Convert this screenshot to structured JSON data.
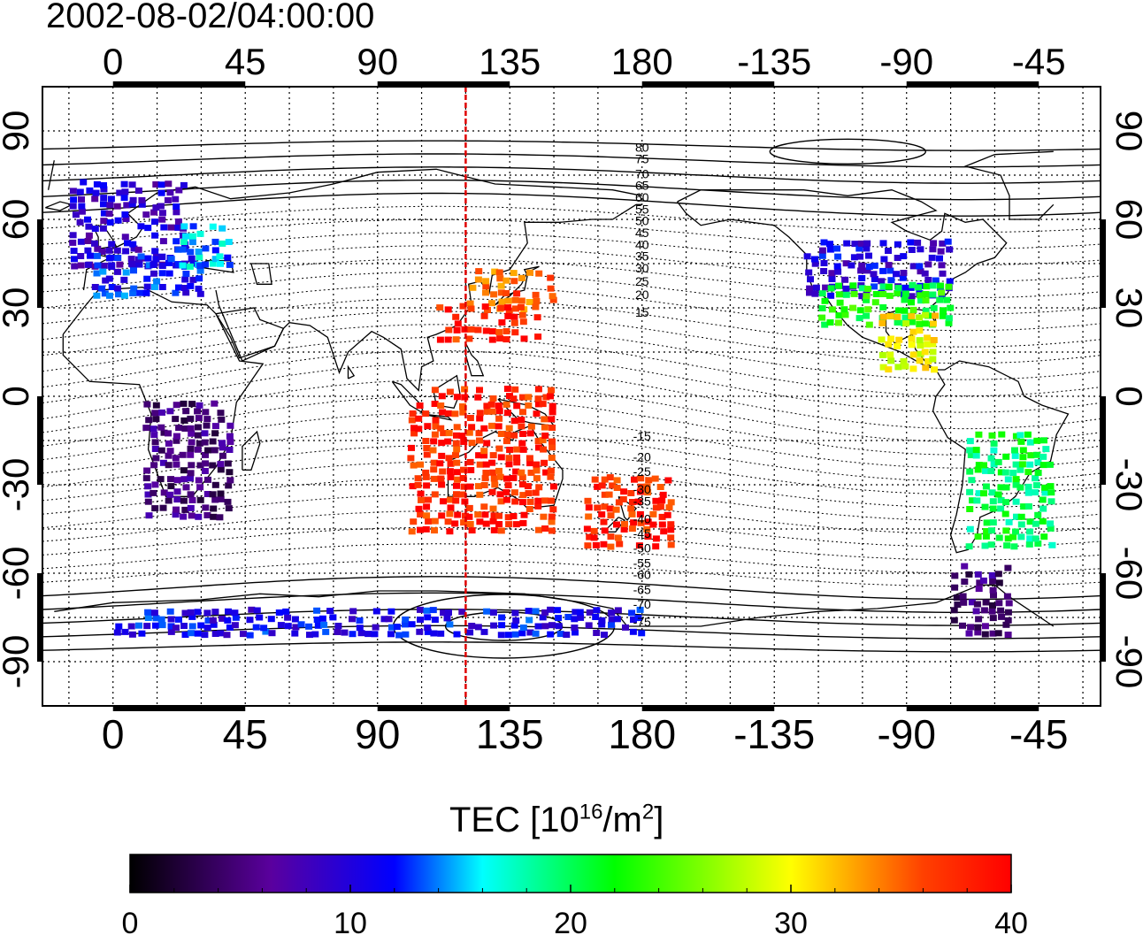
{
  "title": "2002-08-02/04:00:00",
  "map": {
    "x_ticks": [
      0,
      45,
      90,
      135,
      180,
      -135,
      -90,
      -45
    ],
    "y_ticks_left": [
      90,
      60,
      30,
      0,
      -30,
      -60,
      -90
    ],
    "y_ticks_right": [
      90,
      60,
      30,
      0,
      -30,
      -60,
      -90
    ],
    "lon_range": [
      -24,
      336
    ],
    "lat_range": [
      -105,
      105
    ],
    "terminator_longitude": 120,
    "terminator_color": "#e00000",
    "contour_labels": [
      "80",
      "75",
      "70",
      "65",
      "60",
      "55",
      "50",
      "45",
      "40",
      "35",
      "30",
      "25",
      "20",
      "15",
      "-15",
      "-20",
      "-25",
      "-30",
      "-35",
      "-40",
      "-45",
      "-50",
      "-55",
      "-60",
      "-65",
      "-70",
      "-75"
    ]
  },
  "colorbar": {
    "title_text": "TEC  [10",
    "title_exp": "16",
    "title_mid": "/m",
    "title_exp2": "2",
    "title_end": "]",
    "tick_labels": [
      "0",
      "10",
      "20",
      "30",
      "40"
    ],
    "min": 0,
    "max": 40,
    "colormap": [
      "#000000",
      "#5a009e",
      "#0000ff",
      "#00ffff",
      "#00ff00",
      "#ffff00",
      "#ff0000"
    ]
  },
  "chart_data": {
    "type": "heatmap",
    "title": "2002-08-02/04:00:00",
    "colorbar_label": "TEC [10^16/m^2]",
    "value_range": [
      0,
      40
    ],
    "regions": [
      {
        "lon": [
          -15,
          25
        ],
        "lat": [
          45,
          75
        ],
        "value": 9
      },
      {
        "lon": [
          -10,
          30
        ],
        "lat": [
          35,
          50
        ],
        "value": 12
      },
      {
        "lon": [
          20,
          40
        ],
        "lat": [
          45,
          60
        ],
        "value": 15
      },
      {
        "lon": [
          120,
          150
        ],
        "lat": [
          30,
          45
        ],
        "value": 36
      },
      {
        "lon": [
          110,
          145
        ],
        "lat": [
          20,
          33
        ],
        "value": 39
      },
      {
        "lon": [
          -125,
          -75
        ],
        "lat": [
          35,
          55
        ],
        "value": 10
      },
      {
        "lon": [
          -120,
          -75
        ],
        "lat": [
          25,
          40
        ],
        "value": 22
      },
      {
        "lon": [
          -100,
          -80
        ],
        "lat": [
          10,
          30
        ],
        "value": 30
      },
      {
        "lon": [
          100,
          150
        ],
        "lat": [
          -45,
          5
        ],
        "value": 39
      },
      {
        "lon": [
          160,
          190
        ],
        "lat": [
          -50,
          -25
        ],
        "value": 39
      },
      {
        "lon": [
          10,
          40
        ],
        "lat": [
          -40,
          0
        ],
        "value": 5
      },
      {
        "lon": [
          -70,
          -40
        ],
        "lat": [
          -50,
          -10
        ],
        "value": 20
      },
      {
        "lon": [
          -75,
          -55
        ],
        "lat": [
          -80,
          -55
        ],
        "value": 5
      },
      {
        "lon": [
          0,
          180
        ],
        "lat": [
          -80,
          -70
        ],
        "value": 11
      }
    ]
  }
}
